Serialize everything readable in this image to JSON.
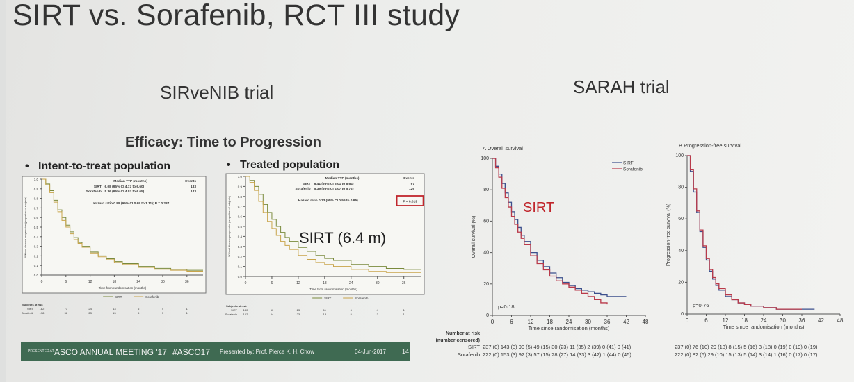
{
  "slide": {
    "title": "SIRT vs. Sorafenib, RCT III study",
    "left_subtitle": "SIRveNIB trial",
    "right_subtitle": "SARAH trial",
    "efficacy_heading": "Efficacy: Time to Progression",
    "bullet_itt": "Intent-to-treat population",
    "bullet_treated": "Treated population",
    "overlay_sirt_label": "SIRT (6.4 m)",
    "overlay_sirt_sarah": "SIRT"
  },
  "footer": {
    "meeting": "ASCO ANNUAL MEETING '17",
    "hashtag": "#ASCO17",
    "presenter": "Presented by: Prof. Pierce K. H. Chow",
    "date": "04-Jun-2017",
    "page": "14"
  },
  "colors": {
    "sirt": "#3b4f8c",
    "sorafenib": "#b93a4a",
    "sirt_itt": "#7a8a3c",
    "sorafenib_itt": "#c8a44a",
    "footer": "#3f6a52",
    "highlight_box": "#c0262c"
  },
  "chart_data": [
    {
      "type": "line",
      "panel": "ITT",
      "header": {
        "col1": "Median TTP (months)",
        "col2": "Events"
      },
      "rows": [
        {
          "arm": "SIRT",
          "median": "6.08 (95% CI 4.17 to 6.60)",
          "events": "133"
        },
        {
          "arm": "Sorafenib",
          "median": "5.36 (95% CI 4.07 to 6.65)",
          "events": "143"
        }
      ],
      "hazard": "Hazard ratio 0.88 (95% CI 0.69 to 1.11); P = 0.287",
      "xlabel": "Time from randomisation (months)",
      "ylabel": "Without disease progression (proportion of subjects)",
      "xticks": [
        "0",
        "6",
        "12",
        "18",
        "24",
        "30",
        "36"
      ],
      "yticks": [
        "1.0",
        "0.9",
        "0.8",
        "0.7",
        "0.6",
        "0.5",
        "0.4",
        "0.3",
        "0.2",
        "0.1",
        "0.0"
      ],
      "xlim": [
        0,
        40
      ],
      "ylim": [
        0,
        1
      ],
      "series": [
        {
          "name": "SIRT",
          "x": [
            0,
            1,
            2,
            3,
            4,
            5,
            6,
            7,
            8,
            9,
            10,
            12,
            14,
            16,
            18,
            20,
            24,
            28,
            32,
            36,
            40
          ],
          "y": [
            1.0,
            0.95,
            0.88,
            0.78,
            0.68,
            0.6,
            0.52,
            0.45,
            0.39,
            0.34,
            0.3,
            0.24,
            0.2,
            0.17,
            0.14,
            0.12,
            0.09,
            0.07,
            0.06,
            0.05,
            0.05
          ]
        },
        {
          "name": "Sorafenib",
          "x": [
            0,
            1,
            2,
            3,
            4,
            5,
            6,
            7,
            8,
            9,
            10,
            12,
            14,
            16,
            18,
            20,
            24,
            28,
            32,
            36,
            40
          ],
          "y": [
            1.0,
            0.94,
            0.86,
            0.76,
            0.66,
            0.57,
            0.5,
            0.43,
            0.37,
            0.33,
            0.29,
            0.23,
            0.19,
            0.16,
            0.13,
            0.11,
            0.08,
            0.06,
            0.05,
            0.04,
            0.04
          ]
        }
      ],
      "risk_title": "Subjects at risk",
      "risk": [
        {
          "arm": "SIRT",
          "values": [
            "182",
            "73",
            "24",
            "13",
            "6",
            "4",
            "1"
          ]
        },
        {
          "arm": "Sorafenib",
          "values": [
            "178",
            "56",
            "23",
            "13",
            "5",
            "3",
            "1"
          ]
        }
      ],
      "legend": [
        "SIRT",
        "Sorafenib"
      ]
    },
    {
      "type": "line",
      "panel": "Treated",
      "header": {
        "col1": "Median TTP (months)",
        "col2": "Events"
      },
      "rows": [
        {
          "arm": "SIRT",
          "median": "6.41 (95% CI 6.01 to 8.64)",
          "events": "97"
        },
        {
          "arm": "Sorafenib",
          "median": "5.39 (95% CI 4.07 to 5.72)",
          "events": "126"
        }
      ],
      "hazard": "Hazard ratio 0.73 (95% CI 0.56 to 0.95)",
      "pvalue": "P = 0.019",
      "xlabel": "Time from randomisation (months)",
      "ylabel": "Without disease progression (proportion of subjects)",
      "xticks": [
        "0",
        "6",
        "12",
        "18",
        "24",
        "30",
        "36"
      ],
      "yticks": [
        "1.0",
        "0.9",
        "0.8",
        "0.7",
        "0.6",
        "0.5",
        "0.4",
        "0.3",
        "0.2",
        "0.1",
        "0.0"
      ],
      "xlim": [
        0,
        40
      ],
      "ylim": [
        0,
        1
      ],
      "series": [
        {
          "name": "SIRT",
          "x": [
            0,
            1,
            2,
            3,
            4,
            5,
            6,
            7,
            8,
            9,
            10,
            12,
            14,
            16,
            18,
            20,
            24,
            28,
            32,
            36,
            40
          ],
          "y": [
            1.0,
            0.96,
            0.9,
            0.82,
            0.72,
            0.64,
            0.57,
            0.5,
            0.44,
            0.39,
            0.35,
            0.29,
            0.25,
            0.21,
            0.18,
            0.16,
            0.12,
            0.1,
            0.08,
            0.07,
            0.07
          ]
        },
        {
          "name": "Sorafenib",
          "x": [
            0,
            1,
            2,
            3,
            4,
            5,
            6,
            7,
            8,
            9,
            10,
            12,
            14,
            16,
            18,
            20,
            24,
            28,
            32,
            36,
            40
          ],
          "y": [
            1.0,
            0.94,
            0.86,
            0.75,
            0.64,
            0.55,
            0.48,
            0.41,
            0.35,
            0.31,
            0.27,
            0.21,
            0.17,
            0.14,
            0.12,
            0.1,
            0.07,
            0.05,
            0.04,
            0.04,
            0.04
          ]
        }
      ],
      "risk_title": "Subjects at risk",
      "risk": [
        {
          "arm": "SIRT",
          "values": [
            "130",
            "60",
            "23",
            "11",
            "6",
            "4",
            "1"
          ]
        },
        {
          "arm": "Sorafenib",
          "values": [
            "162",
            "54",
            "23",
            "13",
            "5",
            "3",
            "1"
          ]
        }
      ],
      "legend": [
        "SIRT",
        "Sorafenib"
      ]
    },
    {
      "type": "line",
      "panel": "A",
      "title": "Overall survival",
      "xlabel": "Time since randomisation (months)",
      "ylabel": "Overall survival (%)",
      "xticks": [
        "0",
        "6",
        "12",
        "18",
        "24",
        "30",
        "36",
        "42",
        "48"
      ],
      "yticks": [
        "0",
        "20",
        "40",
        "60",
        "80",
        "100"
      ],
      "xlim": [
        0,
        48
      ],
      "ylim": [
        0,
        100
      ],
      "pvalue": "p=0·18",
      "series": [
        {
          "name": "SIRT",
          "x": [
            0,
            1,
            2,
            3,
            4,
            5,
            6,
            7,
            8,
            9,
            10,
            12,
            14,
            16,
            18,
            20,
            22,
            24,
            26,
            28,
            30,
            32,
            34,
            36,
            38,
            40,
            42
          ],
          "y": [
            100,
            95,
            90,
            84,
            78,
            72,
            66,
            61,
            56,
            51,
            47,
            40,
            35,
            31,
            27,
            24,
            21,
            19,
            17,
            16,
            15,
            14,
            13,
            12,
            12,
            12,
            12
          ]
        },
        {
          "name": "Sorafenib",
          "x": [
            0,
            1,
            2,
            3,
            4,
            5,
            6,
            7,
            8,
            9,
            10,
            12,
            14,
            16,
            18,
            20,
            22,
            24,
            26,
            28,
            30,
            32,
            34,
            36
          ],
          "y": [
            100,
            94,
            88,
            81,
            75,
            69,
            63,
            58,
            53,
            49,
            45,
            38,
            33,
            29,
            25,
            22,
            20,
            18,
            16,
            14,
            12,
            10,
            8,
            7
          ]
        }
      ],
      "risk_title": "Number at risk (number censored)",
      "risk": [
        {
          "arm": "SIRT",
          "values": "237 (0) 143 (3)  90 (5)  49 (15) 30 (23) 11 (35)  2 (39)  0 (41)  0 (41)"
        },
        {
          "arm": "Sorafenib",
          "values": "222 (0) 153 (3)  92 (3)  57 (15) 28 (27) 14 (33)  3 (42)  1 (44)  0 (45)"
        }
      ],
      "legend": [
        "SIRT",
        "Sorafenib"
      ]
    },
    {
      "type": "line",
      "panel": "B",
      "title": "Progression-free survival",
      "xlabel": "Time since randomisation (months)",
      "ylabel": "Progression-free survival (%)",
      "xticks": [
        "0",
        "6",
        "12",
        "18",
        "24",
        "30",
        "36",
        "42",
        "48"
      ],
      "yticks": [
        "0",
        "20",
        "40",
        "60",
        "80",
        "100"
      ],
      "xlim": [
        0,
        48
      ],
      "ylim": [
        0,
        100
      ],
      "pvalue": "p=0·76",
      "series": [
        {
          "name": "SIRT",
          "x": [
            0,
            1,
            2,
            3,
            4,
            5,
            6,
            7,
            8,
            9,
            10,
            12,
            14,
            16,
            18,
            20,
            24,
            28,
            32,
            36,
            40
          ],
          "y": [
            100,
            90,
            77,
            64,
            52,
            42,
            34,
            27,
            22,
            18,
            15,
            11,
            9,
            7,
            6,
            5,
            4,
            3,
            3,
            3,
            3
          ]
        },
        {
          "name": "Sorafenib",
          "x": [
            0,
            1,
            2,
            3,
            4,
            5,
            6,
            7,
            8,
            9,
            10,
            12,
            14,
            16,
            18,
            20,
            24,
            28,
            32,
            36
          ],
          "y": [
            100,
            91,
            79,
            65,
            53,
            43,
            35,
            28,
            23,
            19,
            16,
            12,
            9,
            7,
            6,
            5,
            4,
            3,
            3,
            3
          ]
        }
      ],
      "risk": [
        {
          "arm": "SIRT",
          "values": "237 (0) 76 (10) 29 (13)  8 (15)  5 (16)  3 (18)  0 (19)  0 (19)  0 (19)"
        },
        {
          "arm": "Sorafenib",
          "values": "222 (0) 82 (6) 29 (10) 15 (13)  5 (14)  3 (14)  1 (16)  0 (17)  0 (17)"
        }
      ]
    }
  ]
}
